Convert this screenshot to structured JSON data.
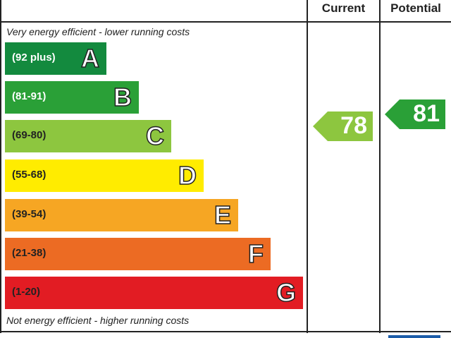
{
  "chart_data": {
    "type": "table",
    "headers": {
      "current": "Current",
      "potential": "Potential"
    },
    "top_note": "Very energy efficient - lower running costs",
    "bottom_note": "Not energy efficient - higher running costs",
    "bands": [
      {
        "letter": "A",
        "range": "(92 plus)",
        "color": "#138a3e",
        "text_color": "#ffffff"
      },
      {
        "letter": "B",
        "range": "(81-91)",
        "color": "#2aa037",
        "text_color": "#ffffff"
      },
      {
        "letter": "C",
        "range": "(69-80)",
        "color": "#8dc63f",
        "text_color": "#222222"
      },
      {
        "letter": "D",
        "range": "(55-68)",
        "color": "#ffec00",
        "text_color": "#222222"
      },
      {
        "letter": "E",
        "range": "(39-54)",
        "color": "#f6a623",
        "text_color": "#222222"
      },
      {
        "letter": "F",
        "range": "(21-38)",
        "color": "#ec6b23",
        "text_color": "#222222"
      },
      {
        "letter": "G",
        "range": "(1-20)",
        "color": "#e21c23",
        "text_color": "#222222"
      }
    ],
    "current": {
      "value": "78",
      "band": "C",
      "color": "#8dc63f"
    },
    "potential": {
      "value": "81",
      "band": "B",
      "color": "#2aa037"
    }
  }
}
